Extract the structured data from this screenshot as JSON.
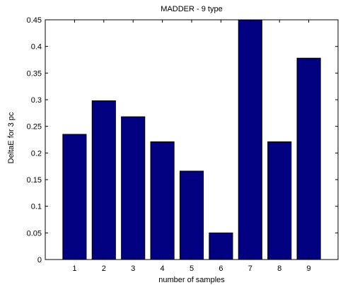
{
  "chart_data": {
    "type": "bar",
    "title": "MADDER - 9 type",
    "xlabel": "number of samples",
    "ylabel": "DeltaE for 3 pc",
    "categories": [
      "1",
      "2",
      "3",
      "4",
      "5",
      "6",
      "7",
      "8",
      "9"
    ],
    "values": [
      0.235,
      0.298,
      0.268,
      0.221,
      0.166,
      0.05,
      0.45,
      0.221,
      0.378
    ],
    "ylim": [
      0,
      0.45
    ],
    "xlim": [
      0,
      10
    ],
    "yticks": [
      "0",
      "0.05",
      "0.1",
      "0.15",
      "0.2",
      "0.25",
      "0.3",
      "0.35",
      "0.4",
      "0.45"
    ],
    "grid": false,
    "bar_color": "#000080",
    "bar_edge_color": "#000000"
  }
}
